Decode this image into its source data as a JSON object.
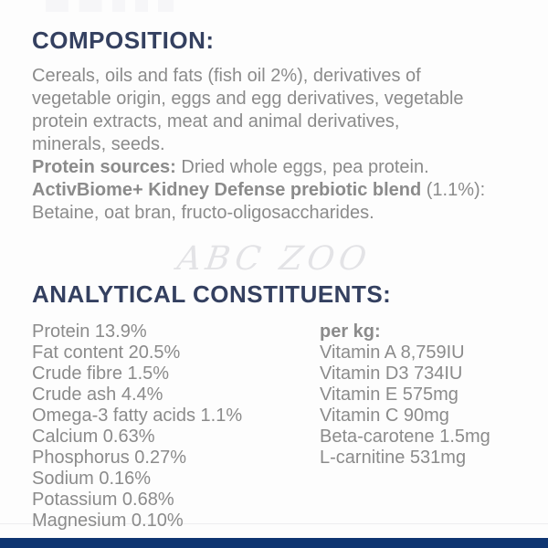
{
  "theme": {
    "heading_color": "#344060",
    "body_color": "#8b8b8b",
    "watermark_color": "#e3e3e6",
    "bar_color": "#0e3571",
    "background": "#fdfdfd"
  },
  "composition": {
    "heading": "COMPOSITION:",
    "lines": [
      {
        "segments": [
          {
            "text": "Cereals, oils and fats (fish oil 2%), derivatives of",
            "bold": false
          }
        ]
      },
      {
        "segments": [
          {
            "text": "vegetable origin, eggs and egg derivatives, vegetable",
            "bold": false
          }
        ]
      },
      {
        "segments": [
          {
            "text": "protein extracts, meat and animal derivatives,",
            "bold": false
          }
        ]
      },
      {
        "segments": [
          {
            "text": "minerals, seeds.",
            "bold": false
          }
        ]
      },
      {
        "segments": [
          {
            "text": "Protein sources:",
            "bold": true
          },
          {
            "text": " Dried whole eggs, pea protein.",
            "bold": false
          }
        ]
      },
      {
        "segments": [
          {
            "text": "ActivBiome+ Kidney Defense prebiotic blend",
            "bold": true
          },
          {
            "text": " (1.1%):",
            "bold": false
          }
        ]
      },
      {
        "segments": [
          {
            "text": "Betaine, oat bran, fructo-oligosaccharides.",
            "bold": false
          }
        ]
      }
    ]
  },
  "watermark": {
    "text": "ABC ZOO"
  },
  "analytical": {
    "heading": "ANALYTICAL CONSTITUENTS:",
    "left_column": [
      "Protein 13.9%",
      "Fat content 20.5%",
      "Crude fibre 1.5%",
      "Crude ash 4.4%",
      "Omega-3 fatty acids 1.1%",
      "Calcium 0.63%",
      "Phosphorus 0.27%",
      "Sodium 0.16%",
      "Potassium 0.68%",
      "Magnesium 0.10%"
    ],
    "right_column_header": "per kg:",
    "right_column_items": [
      "Vitamin A 8,759IU",
      "Vitamin D3 734IU",
      "Vitamin E 575mg",
      "Vitamin C 90mg",
      "Beta-carotene 1.5mg",
      "L-carnitine 531mg"
    ]
  }
}
